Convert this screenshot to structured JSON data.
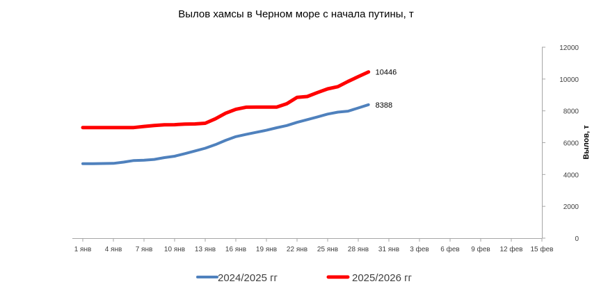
{
  "chart_data": {
    "type": "line",
    "title": "Вылов хамсы в Черном море с начала путины, т",
    "xlabel": "",
    "ylabel": "Вылов, т",
    "y_axis_position": "right",
    "ylim": [
      0,
      12000
    ],
    "yticks": [
      0,
      2000,
      4000,
      6000,
      8000,
      10000,
      12000
    ],
    "xticks": [
      "1 янв",
      "4 янв",
      "7 янв",
      "10 янв",
      "13 янв",
      "16 янв",
      "19 янв",
      "22 янв",
      "25 янв",
      "28 янв",
      "31 янв",
      "3 фев",
      "6 фев",
      "9 фев",
      "12 фев",
      "15 фев"
    ],
    "x_day_range": [
      1,
      46
    ],
    "grid": false,
    "legend": "bottom",
    "series": [
      {
        "name": "2024/2025 гг",
        "color": "#4f81bd",
        "end_label": "8388",
        "points": [
          [
            1,
            4680
          ],
          [
            2,
            4680
          ],
          [
            3,
            4690
          ],
          [
            4,
            4700
          ],
          [
            5,
            4780
          ],
          [
            6,
            4880
          ],
          [
            7,
            4900
          ],
          [
            8,
            4950
          ],
          [
            9,
            5060
          ],
          [
            10,
            5150
          ],
          [
            11,
            5310
          ],
          [
            12,
            5480
          ],
          [
            13,
            5650
          ],
          [
            14,
            5880
          ],
          [
            15,
            6150
          ],
          [
            16,
            6380
          ],
          [
            17,
            6520
          ],
          [
            18,
            6650
          ],
          [
            19,
            6780
          ],
          [
            20,
            6940
          ],
          [
            21,
            7080
          ],
          [
            22,
            7280
          ],
          [
            23,
            7450
          ],
          [
            24,
            7620
          ],
          [
            25,
            7800
          ],
          [
            26,
            7920
          ],
          [
            27,
            7980
          ],
          [
            28,
            8180
          ],
          [
            29,
            8388
          ]
        ]
      },
      {
        "name": "2025/2026 гг",
        "color": "#ff0000",
        "end_label": "10446",
        "points": [
          [
            1,
            6950
          ],
          [
            2,
            6950
          ],
          [
            3,
            6950
          ],
          [
            4,
            6950
          ],
          [
            5,
            6950
          ],
          [
            6,
            6950
          ],
          [
            7,
            7020
          ],
          [
            8,
            7080
          ],
          [
            9,
            7120
          ],
          [
            10,
            7130
          ],
          [
            11,
            7170
          ],
          [
            12,
            7180
          ],
          [
            13,
            7220
          ],
          [
            14,
            7500
          ],
          [
            15,
            7850
          ],
          [
            16,
            8100
          ],
          [
            17,
            8230
          ],
          [
            18,
            8240
          ],
          [
            19,
            8240
          ],
          [
            20,
            8240
          ],
          [
            21,
            8450
          ],
          [
            22,
            8850
          ],
          [
            23,
            8900
          ],
          [
            24,
            9150
          ],
          [
            25,
            9380
          ],
          [
            26,
            9520
          ],
          [
            27,
            9850
          ],
          [
            28,
            10150
          ],
          [
            29,
            10446
          ]
        ]
      }
    ]
  }
}
